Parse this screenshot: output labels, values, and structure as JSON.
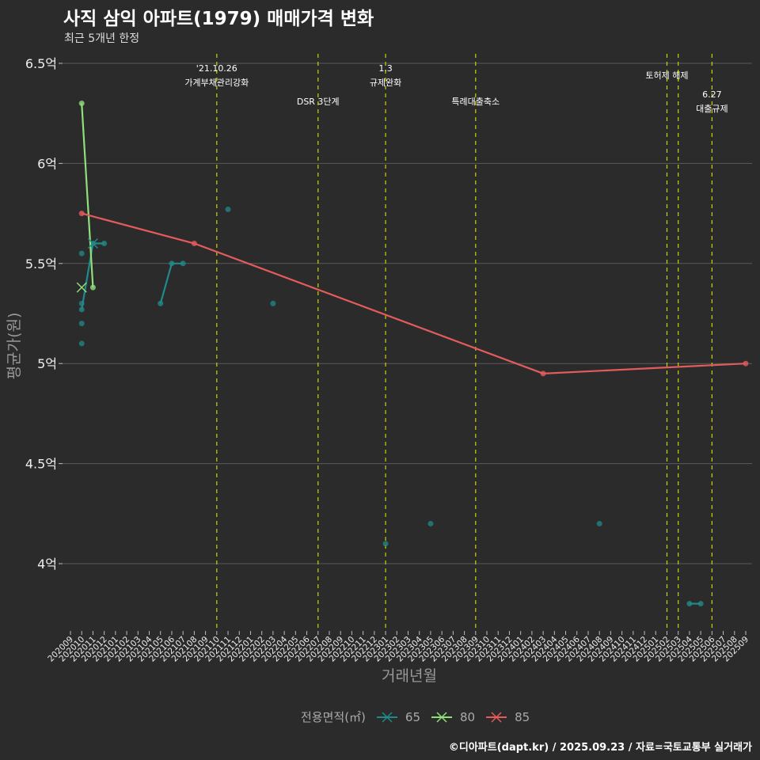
{
  "title": "사직 삼익 아파트(1979) 매매가격 변화",
  "subtitle": "최근 5개년 한정",
  "caption": "©디아파트(dapt.kr) / 2025.09.23 / 자료=국토교통부 실거래가",
  "colors": {
    "bg": "#2b2b2b",
    "grid": "#5a5a5a",
    "vline": "#c8d400",
    "s65": "#22898a",
    "s80": "#8fe07a",
    "s85": "#e35b5b"
  },
  "chart_data": {
    "type": "line",
    "xlabel": "거래년월",
    "ylabel": "평균가(원)",
    "ylim": [
      3.7,
      6.55
    ],
    "yticks": [
      4,
      4.5,
      5,
      5.5,
      6,
      6.5
    ],
    "ytick_labels": [
      "4억",
      "4.5억",
      "5억",
      "5.5억",
      "6억",
      "6.5억"
    ],
    "x_categories": [
      "202009",
      "202010",
      "202011",
      "202012",
      "202101",
      "202102",
      "202103",
      "202104",
      "202105",
      "202106",
      "202107",
      "202108",
      "202109",
      "202110",
      "202111",
      "202112",
      "202201",
      "202202",
      "202203",
      "202204",
      "202205",
      "202206",
      "202207",
      "202208",
      "202209",
      "202210",
      "202211",
      "202212",
      "202301",
      "202302",
      "202303",
      "202304",
      "202305",
      "202306",
      "202307",
      "202308",
      "202309",
      "202310",
      "202311",
      "202312",
      "202401",
      "202402",
      "202403",
      "202404",
      "202405",
      "202406",
      "202407",
      "202408",
      "202409",
      "202410",
      "202411",
      "202412",
      "202501",
      "202502",
      "202503",
      "202504",
      "202505",
      "202506",
      "202507",
      "202508",
      "202509"
    ],
    "legend_title": "전용면적(㎡)",
    "legend_position": "bottom",
    "series": [
      {
        "name": "65",
        "line": [
          [
            "202010",
            5.27
          ],
          [
            "202011",
            5.6
          ],
          [
            "202012",
            5.6
          ]
        ],
        "line2": [
          [
            "202105",
            5.3
          ],
          [
            "202106",
            5.5
          ],
          [
            "202107",
            5.5
          ]
        ],
        "line3": [
          [
            "202504",
            3.8
          ],
          [
            "202505",
            3.8
          ]
        ],
        "points": [
          [
            "202010",
            5.55
          ],
          [
            "202010",
            5.3
          ],
          [
            "202010",
            5.2
          ],
          [
            "202010",
            5.1
          ],
          [
            "202111",
            5.77
          ],
          [
            "202203",
            5.3
          ],
          [
            "202301",
            4.1
          ],
          [
            "202305",
            4.2
          ],
          [
            "202408",
            4.2
          ]
        ]
      },
      {
        "name": "80",
        "line": [
          [
            "202010",
            6.3
          ],
          [
            "202011",
            5.38
          ]
        ],
        "points": [
          [
            "202010",
            5.38
          ]
        ]
      },
      {
        "name": "85",
        "line": [
          [
            "202010",
            5.75
          ],
          [
            "202108",
            5.6
          ],
          [
            "202403",
            4.95
          ],
          [
            "202509",
            5.0
          ]
        ],
        "points": []
      }
    ],
    "annotations": [
      {
        "x": "202110",
        "lines": [
          "'21.10.26",
          "가계부채관리강화"
        ]
      },
      {
        "x": "202207",
        "lines": [
          "DSR 3단계"
        ]
      },
      {
        "x": "202301",
        "lines": [
          "1.3",
          "규제완화"
        ]
      },
      {
        "x": "202309",
        "lines": [
          "특례대출축소"
        ]
      },
      {
        "x": "202502",
        "lines": [
          "토허제 해제"
        ]
      },
      {
        "x": "202503",
        "lines": []
      },
      {
        "x": "202506",
        "lines": [
          "6.27",
          "대출규제"
        ]
      }
    ]
  }
}
